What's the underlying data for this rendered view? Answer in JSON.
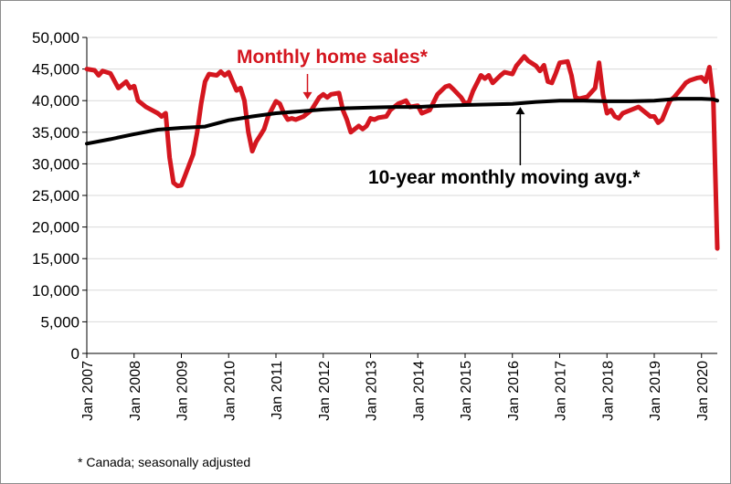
{
  "chart_data": {
    "type": "line",
    "title": "",
    "xlabel": "",
    "ylabel": "",
    "ylim": [
      0,
      50000
    ],
    "yticks": [
      0,
      5000,
      10000,
      15000,
      20000,
      25000,
      30000,
      35000,
      40000,
      45000,
      50000
    ],
    "ytick_labels": [
      "0",
      "5,000",
      "10,000",
      "15,000",
      "20,000",
      "25,000",
      "30,000",
      "35,000",
      "40,000",
      "45,000",
      "50,000"
    ],
    "xlim": [
      "2007-01",
      "2020-05"
    ],
    "xtick_labels": [
      "Jan 2007",
      "Jan 2008",
      "Jan 2009",
      "Jan 2010",
      "Jan 2011",
      "Jan 2012",
      "Jan 2013",
      "Jan 2014",
      "Jan 2015",
      "Jan 2016",
      "Jan 2017",
      "Jan 2018",
      "Jan 2019",
      "Jan 2020"
    ],
    "grid": "horizontal",
    "legend": "none",
    "series": [
      {
        "name": "Monthly home sales*",
        "color": "#d4161f",
        "points": [
          [
            "2007-01",
            45000
          ],
          [
            "2007-03",
            44800
          ],
          [
            "2007-04",
            44000
          ],
          [
            "2007-05",
            44700
          ],
          [
            "2007-07",
            44300
          ],
          [
            "2007-09",
            42000
          ],
          [
            "2007-11",
            43000
          ],
          [
            "2007-12",
            42000
          ],
          [
            "2008-01",
            42300
          ],
          [
            "2008-02",
            40000
          ],
          [
            "2008-04",
            39000
          ],
          [
            "2008-07",
            38000
          ],
          [
            "2008-08",
            37500
          ],
          [
            "2008-09",
            38000
          ],
          [
            "2008-10",
            31000
          ],
          [
            "2008-11",
            27000
          ],
          [
            "2008-12",
            26500
          ],
          [
            "2009-01",
            26600
          ],
          [
            "2009-04",
            31500
          ],
          [
            "2009-05",
            35000
          ],
          [
            "2009-06",
            39500
          ],
          [
            "2009-07",
            43000
          ],
          [
            "2009-08",
            44200
          ],
          [
            "2009-10",
            44000
          ],
          [
            "2009-11",
            44600
          ],
          [
            "2009-12",
            44000
          ],
          [
            "2010-01",
            44500
          ],
          [
            "2010-02",
            43000
          ],
          [
            "2010-03",
            41600
          ],
          [
            "2010-04",
            42000
          ],
          [
            "2010-05",
            40000
          ],
          [
            "2010-06",
            35000
          ],
          [
            "2010-07",
            32000
          ],
          [
            "2010-08",
            33500
          ],
          [
            "2010-09",
            34500
          ],
          [
            "2010-10",
            35500
          ],
          [
            "2010-11",
            37500
          ],
          [
            "2011-01",
            39900
          ],
          [
            "2011-02",
            39500
          ],
          [
            "2011-03",
            38000
          ],
          [
            "2011-04",
            37000
          ],
          [
            "2011-05",
            37200
          ],
          [
            "2011-06",
            37000
          ],
          [
            "2011-08",
            37500
          ],
          [
            "2011-10",
            38500
          ],
          [
            "2011-12",
            40500
          ],
          [
            "2012-01",
            41000
          ],
          [
            "2012-02",
            40500
          ],
          [
            "2012-03",
            41000
          ],
          [
            "2012-05",
            41200
          ],
          [
            "2012-06",
            38500
          ],
          [
            "2012-07",
            37000
          ],
          [
            "2012-08",
            35000
          ],
          [
            "2012-09",
            35500
          ],
          [
            "2012-10",
            36000
          ],
          [
            "2012-11",
            35500
          ],
          [
            "2012-12",
            36000
          ],
          [
            "2013-01",
            37200
          ],
          [
            "2013-02",
            37000
          ],
          [
            "2013-03",
            37300
          ],
          [
            "2013-05",
            37500
          ],
          [
            "2013-06",
            38500
          ],
          [
            "2013-08",
            39500
          ],
          [
            "2013-10",
            40000
          ],
          [
            "2013-11",
            39000
          ],
          [
            "2014-01",
            39200
          ],
          [
            "2014-02",
            38000
          ],
          [
            "2014-04",
            38500
          ],
          [
            "2014-06",
            41000
          ],
          [
            "2014-08",
            42200
          ],
          [
            "2014-09",
            42400
          ],
          [
            "2014-10",
            41800
          ],
          [
            "2014-12",
            40500
          ],
          [
            "2015-01",
            39500
          ],
          [
            "2015-02",
            39800
          ],
          [
            "2015-03",
            41500
          ],
          [
            "2015-05",
            44000
          ],
          [
            "2015-06",
            43500
          ],
          [
            "2015-07",
            44000
          ],
          [
            "2015-08",
            42800
          ],
          [
            "2015-10",
            44000
          ],
          [
            "2015-11",
            44500
          ],
          [
            "2016-01",
            44200
          ],
          [
            "2016-02",
            45500
          ],
          [
            "2016-04",
            47000
          ],
          [
            "2016-05",
            46300
          ],
          [
            "2016-07",
            45500
          ],
          [
            "2016-08",
            44700
          ],
          [
            "2016-09",
            45600
          ],
          [
            "2016-10",
            43000
          ],
          [
            "2016-11",
            42800
          ],
          [
            "2016-12",
            44300
          ],
          [
            "2017-01",
            46000
          ],
          [
            "2017-03",
            46200
          ],
          [
            "2017-04",
            44000
          ],
          [
            "2017-05",
            40500
          ],
          [
            "2017-06",
            40300
          ],
          [
            "2017-08",
            40600
          ],
          [
            "2017-10",
            42000
          ],
          [
            "2017-11",
            46000
          ],
          [
            "2017-12",
            41000
          ],
          [
            "2018-01",
            38000
          ],
          [
            "2018-02",
            38500
          ],
          [
            "2018-03",
            37500
          ],
          [
            "2018-04",
            37200
          ],
          [
            "2018-05",
            38000
          ],
          [
            "2018-07",
            38500
          ],
          [
            "2018-09",
            39000
          ],
          [
            "2018-11",
            38000
          ],
          [
            "2018-12",
            37500
          ],
          [
            "2019-01",
            37500
          ],
          [
            "2019-02",
            36500
          ],
          [
            "2019-03",
            37000
          ],
          [
            "2019-04",
            38500
          ],
          [
            "2019-05",
            40000
          ],
          [
            "2019-06",
            40500
          ],
          [
            "2019-08",
            42000
          ],
          [
            "2019-09",
            42800
          ],
          [
            "2019-10",
            43200
          ],
          [
            "2019-12",
            43600
          ],
          [
            "2020-01",
            43700
          ],
          [
            "2020-02",
            43000
          ],
          [
            "2020-03",
            45300
          ],
          [
            "2020-04",
            40000
          ],
          [
            "2020-05",
            16600
          ]
        ]
      },
      {
        "name": "10-year monthly moving avg.*",
        "color": "#000000",
        "points": [
          [
            "2007-01",
            33200
          ],
          [
            "2007-07",
            33900
          ],
          [
            "2008-01",
            34700
          ],
          [
            "2008-07",
            35400
          ],
          [
            "2009-01",
            35700
          ],
          [
            "2009-07",
            35900
          ],
          [
            "2010-01",
            36900
          ],
          [
            "2010-07",
            37500
          ],
          [
            "2011-01",
            38000
          ],
          [
            "2011-07",
            38300
          ],
          [
            "2012-01",
            38600
          ],
          [
            "2012-07",
            38800
          ],
          [
            "2013-01",
            38900
          ],
          [
            "2013-07",
            39000
          ],
          [
            "2014-01",
            39000
          ],
          [
            "2014-07",
            39200
          ],
          [
            "2015-01",
            39300
          ],
          [
            "2015-07",
            39400
          ],
          [
            "2016-01",
            39500
          ],
          [
            "2016-07",
            39800
          ],
          [
            "2017-01",
            40000
          ],
          [
            "2017-07",
            40000
          ],
          [
            "2018-01",
            39900
          ],
          [
            "2018-07",
            39900
          ],
          [
            "2019-01",
            40000
          ],
          [
            "2019-07",
            40300
          ],
          [
            "2020-01",
            40300
          ],
          [
            "2020-04",
            40200
          ],
          [
            "2020-05",
            40000
          ]
        ]
      }
    ],
    "annotations": [
      {
        "text": "Monthly home sales*",
        "color": "#d4161f",
        "arrow_to": [
          "2011-09",
          40200
        ]
      },
      {
        "text": "10-year monthly moving avg.*",
        "color": "#000000",
        "arrow_to": [
          "2016-03",
          39000
        ]
      }
    ]
  },
  "footnote": "* Canada; seasonally adjusted"
}
